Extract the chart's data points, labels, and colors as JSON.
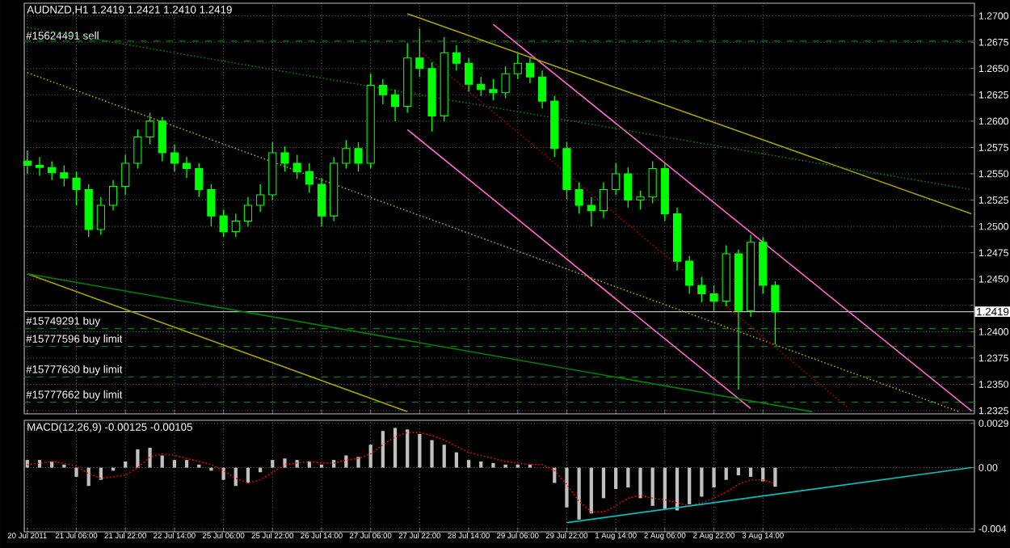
{
  "chart_data": [
    {
      "type": "candlestick",
      "title": "AUDNZD,H1 1.2419 1.2421 1.2410 1.2419",
      "color": "#00ff00",
      "categories": [
        null,
        null,
        null,
        null,
        null,
        null,
        null,
        null,
        null,
        null,
        null,
        null,
        null,
        null,
        null,
        null,
        null,
        null,
        null,
        null,
        null,
        null,
        null,
        null,
        null,
        null,
        null,
        null,
        null,
        null,
        null,
        null,
        null,
        null,
        null,
        null,
        null,
        null,
        null,
        null,
        null,
        null,
        null,
        null,
        null,
        null,
        null,
        null,
        null,
        null,
        null,
        null,
        null,
        null,
        null,
        null,
        null,
        null,
        null,
        null,
        null,
        null,
        null,
        null,
        null,
        null,
        null,
        null,
        null,
        null,
        null,
        null,
        null,
        null,
        null,
        null,
        null,
        null
      ],
      "ohlc": [
        [
          1.2562,
          1.2572,
          1.255,
          1.2558
        ],
        [
          1.2558,
          1.2566,
          1.2548,
          1.2556
        ],
        [
          1.2556,
          1.2562,
          1.2544,
          1.2551
        ],
        [
          1.2551,
          1.2558,
          1.2538,
          1.2546
        ],
        [
          1.2546,
          1.2552,
          1.252,
          1.2535
        ],
        [
          1.2535,
          1.254,
          1.249,
          1.2497
        ],
        [
          1.2497,
          1.2528,
          1.2492,
          1.252
        ],
        [
          1.252,
          1.2544,
          1.2515,
          1.2538
        ],
        [
          1.2538,
          1.2568,
          1.253,
          1.256
        ],
        [
          1.256,
          1.2592,
          1.2555,
          1.2585
        ],
        [
          1.2585,
          1.2608,
          1.2578,
          1.26
        ],
        [
          1.26,
          1.2604,
          1.2562,
          1.257
        ],
        [
          1.257,
          1.2578,
          1.2552,
          1.256
        ],
        [
          1.256,
          1.2566,
          1.2546,
          1.2555
        ],
        [
          1.2555,
          1.256,
          1.2528,
          1.2535
        ],
        [
          1.2535,
          1.254,
          1.25,
          1.251
        ],
        [
          1.251,
          1.2516,
          1.249,
          1.2495
        ],
        [
          1.2495,
          1.2512,
          1.249,
          1.2505
        ],
        [
          1.2505,
          1.2528,
          1.25,
          1.252
        ],
        [
          1.252,
          1.254,
          1.2514,
          1.253
        ],
        [
          1.253,
          1.258,
          1.2525,
          1.257
        ],
        [
          1.257,
          1.2576,
          1.2552,
          1.256
        ],
        [
          1.256,
          1.2568,
          1.2545,
          1.2552
        ],
        [
          1.2552,
          1.256,
          1.2532,
          1.254
        ],
        [
          1.254,
          1.2546,
          1.25,
          1.251
        ],
        [
          1.251,
          1.2566,
          1.2505,
          1.256
        ],
        [
          1.256,
          1.2582,
          1.2555,
          1.2574
        ],
        [
          1.2574,
          1.258,
          1.2552,
          1.256
        ],
        [
          1.256,
          1.2645,
          1.2555,
          1.2634
        ],
        [
          1.2634,
          1.264,
          1.2616,
          1.2625
        ],
        [
          1.2625,
          1.263,
          1.26,
          1.2614
        ],
        [
          1.2614,
          1.2674,
          1.2608,
          1.266
        ],
        [
          1.266,
          1.2688,
          1.2642,
          1.265
        ],
        [
          1.265,
          1.2656,
          1.259,
          1.2605
        ],
        [
          1.2605,
          1.268,
          1.26,
          1.2665
        ],
        [
          1.2665,
          1.2672,
          1.2648,
          1.2655
        ],
        [
          1.2655,
          1.266,
          1.2628,
          1.2635
        ],
        [
          1.2635,
          1.2642,
          1.2624,
          1.263
        ],
        [
          1.263,
          1.264,
          1.262,
          1.2627
        ],
        [
          1.2627,
          1.2652,
          1.2622,
          1.2645
        ],
        [
          1.2645,
          1.2664,
          1.264,
          1.2655
        ],
        [
          1.2655,
          1.266,
          1.2636,
          1.2642
        ],
        [
          1.2642,
          1.2648,
          1.2612,
          1.2619
        ],
        [
          1.2619,
          1.2624,
          1.2566,
          1.2574
        ],
        [
          1.2574,
          1.258,
          1.2526,
          1.2535
        ],
        [
          1.2535,
          1.2542,
          1.2512,
          1.252
        ],
        [
          1.252,
          1.2528,
          1.25,
          1.2515
        ],
        [
          1.2515,
          1.2542,
          1.2508,
          1.2535
        ],
        [
          1.2535,
          1.256,
          1.253,
          1.255
        ],
        [
          1.255,
          1.2556,
          1.2518,
          1.2525
        ],
        [
          1.2525,
          1.2534,
          1.2516,
          1.2528
        ],
        [
          1.2528,
          1.2562,
          1.2522,
          1.2555
        ],
        [
          1.2555,
          1.256,
          1.2505,
          1.2512
        ],
        [
          1.2512,
          1.2518,
          1.2458,
          1.2467
        ],
        [
          1.2467,
          1.2472,
          1.2436,
          1.2444
        ],
        [
          1.2444,
          1.2452,
          1.2428,
          1.2436
        ],
        [
          1.2436,
          1.2444,
          1.242,
          1.2429
        ],
        [
          1.2429,
          1.2482,
          1.2424,
          1.2474
        ],
        [
          1.2474,
          1.2478,
          1.2345,
          1.242
        ],
        [
          1.242,
          1.2492,
          1.2414,
          1.2485
        ],
        [
          1.2485,
          1.249,
          1.2436,
          1.2444
        ],
        [
          1.2444,
          1.2448,
          1.2388,
          1.2419
        ],
        null,
        null,
        null,
        null,
        null,
        null,
        null,
        null,
        null,
        null,
        null,
        null,
        null,
        null,
        null,
        null
      ],
      "series": [
        {
          "type": "line",
          "color": "#ff66cc",
          "line_style": "solid",
          "values": [
            null,
            null,
            null,
            null,
            null,
            null,
            null,
            null,
            null,
            null,
            null,
            null,
            null,
            null,
            null,
            null,
            null,
            null,
            null,
            null,
            null,
            null,
            null,
            null,
            null,
            null,
            null,
            null,
            null,
            null,
            null,
            null,
            null,
            null,
            null,
            null,
            null,
            null,
            1.2692,
            null,
            null,
            null,
            null,
            null,
            null,
            null,
            null,
            null,
            null,
            null,
            null,
            null,
            null,
            null,
            null,
            null,
            null,
            null,
            null,
            null,
            null,
            null,
            null,
            null,
            null,
            null,
            null,
            null,
            null,
            null,
            null,
            null,
            null,
            null,
            null,
            null,
            null,
            1.2325
          ]
        },
        {
          "type": "line",
          "color": "#ff66cc",
          "line_style": "solid",
          "values": [
            null,
            null,
            null,
            null,
            null,
            null,
            null,
            null,
            null,
            null,
            null,
            null,
            null,
            null,
            null,
            null,
            null,
            null,
            null,
            null,
            null,
            null,
            null,
            null,
            null,
            null,
            null,
            null,
            null,
            null,
            null,
            1.2592,
            null,
            null,
            null,
            null,
            null,
            null,
            null,
            null,
            null,
            null,
            null,
            null,
            null,
            null,
            null,
            null,
            null,
            null,
            null,
            null,
            null,
            null,
            null,
            null,
            null,
            null,
            null,
            1.2327,
            null,
            null,
            null,
            null,
            null,
            null,
            null,
            null,
            null,
            null,
            null,
            null,
            null,
            null,
            null,
            null,
            null,
            null
          ]
        },
        {
          "type": "line",
          "color": "#a0a000",
          "line_style": "solid",
          "values": [
            null,
            null,
            null,
            null,
            null,
            null,
            null,
            null,
            null,
            null,
            null,
            null,
            null,
            null,
            null,
            null,
            null,
            null,
            null,
            null,
            null,
            null,
            null,
            null,
            null,
            null,
            null,
            null,
            null,
            null,
            null,
            1.2702,
            null,
            null,
            null,
            null,
            null,
            null,
            null,
            null,
            null,
            null,
            null,
            null,
            null,
            null,
            null,
            null,
            null,
            null,
            null,
            null,
            null,
            null,
            null,
            null,
            null,
            null,
            null,
            null,
            null,
            null,
            null,
            null,
            null,
            null,
            null,
            null,
            null,
            null,
            null,
            null,
            null,
            null,
            null,
            null,
            null,
            1.2512
          ]
        },
        {
          "type": "line",
          "color": "#008000",
          "line_style": "dotted",
          "values": [
            1.2689,
            null,
            null,
            null,
            null,
            null,
            null,
            null,
            null,
            null,
            null,
            null,
            null,
            null,
            null,
            null,
            null,
            null,
            null,
            null,
            null,
            null,
            null,
            null,
            null,
            null,
            null,
            null,
            null,
            null,
            null,
            null,
            null,
            null,
            null,
            null,
            null,
            null,
            null,
            null,
            null,
            null,
            null,
            null,
            null,
            null,
            null,
            null,
            null,
            null,
            null,
            null,
            null,
            null,
            null,
            null,
            null,
            null,
            null,
            null,
            null,
            null,
            null,
            null,
            null,
            null,
            null,
            null,
            null,
            null,
            null,
            null,
            null,
            null,
            null,
            null,
            null,
            1.2535
          ]
        },
        {
          "type": "line",
          "color": "#a0a000",
          "line_style": "dotted",
          "values": [
            1.2646,
            null,
            null,
            null,
            null,
            null,
            null,
            null,
            null,
            null,
            null,
            null,
            null,
            null,
            null,
            null,
            null,
            null,
            null,
            null,
            null,
            null,
            null,
            null,
            null,
            null,
            null,
            null,
            null,
            null,
            null,
            null,
            null,
            null,
            null,
            null,
            null,
            null,
            null,
            null,
            null,
            null,
            null,
            null,
            null,
            null,
            null,
            null,
            null,
            null,
            null,
            null,
            null,
            null,
            null,
            null,
            null,
            null,
            null,
            null,
            null,
            null,
            null,
            null,
            null,
            null,
            null,
            null,
            null,
            null,
            null,
            null,
            null,
            null,
            null,
            null,
            1.2324,
            null
          ]
        },
        {
          "type": "line",
          "color": "#a00000",
          "line_style": "dotted",
          "values": [
            null,
            null,
            null,
            null,
            null,
            null,
            null,
            null,
            null,
            null,
            null,
            null,
            null,
            null,
            null,
            null,
            null,
            null,
            null,
            null,
            null,
            null,
            null,
            null,
            null,
            null,
            null,
            null,
            null,
            null,
            null,
            null,
            1.2667,
            null,
            null,
            null,
            null,
            null,
            null,
            null,
            null,
            null,
            null,
            null,
            null,
            null,
            null,
            null,
            null,
            null,
            null,
            null,
            null,
            null,
            null,
            null,
            null,
            null,
            null,
            null,
            null,
            null,
            null,
            null,
            null,
            null,
            null,
            1.2327,
            null,
            null,
            null,
            null,
            null,
            null,
            null,
            null,
            null,
            null
          ]
        },
        {
          "type": "line",
          "color": "#a0a000",
          "line_style": "solid",
          "values": [
            1.2455,
            null,
            null,
            null,
            null,
            null,
            null,
            null,
            null,
            null,
            null,
            null,
            null,
            null,
            null,
            null,
            null,
            null,
            null,
            null,
            null,
            null,
            null,
            null,
            null,
            null,
            null,
            null,
            null,
            null,
            null,
            1.2324,
            null,
            null,
            null,
            null,
            null,
            null,
            null,
            null,
            null,
            null,
            null,
            null,
            null,
            null,
            null,
            null,
            null,
            null,
            null,
            null,
            null,
            null,
            null,
            null,
            null,
            null,
            null,
            null,
            null,
            null,
            null,
            null,
            null,
            null,
            null,
            null,
            null,
            null,
            null,
            null,
            null,
            null,
            null,
            null,
            null,
            null
          ]
        },
        {
          "type": "line",
          "color": "#008000",
          "line_style": "solid",
          "values": [
            1.2455,
            null,
            null,
            null,
            null,
            null,
            null,
            null,
            null,
            null,
            null,
            null,
            null,
            null,
            null,
            null,
            null,
            null,
            null,
            null,
            null,
            null,
            null,
            null,
            null,
            null,
            null,
            null,
            null,
            null,
            null,
            null,
            null,
            null,
            null,
            null,
            null,
            null,
            null,
            null,
            null,
            null,
            null,
            null,
            null,
            null,
            null,
            null,
            null,
            null,
            null,
            null,
            null,
            null,
            null,
            null,
            null,
            null,
            null,
            null,
            null,
            null,
            null,
            null,
            1.2324,
            null,
            null,
            null,
            null,
            null,
            null,
            null,
            null,
            null,
            null,
            null,
            null,
            null
          ]
        }
      ],
      "ref_lines": [
        {
          "axis": "y",
          "value": 1.2676,
          "label": "#15624491 sell",
          "color": "#008000",
          "line_style": "dashed"
        },
        {
          "axis": "y",
          "value": 1.2403,
          "label": "#15749291 buy",
          "color": "#008000",
          "line_style": "dashed"
        },
        {
          "axis": "y",
          "value": 1.2386,
          "label": "#15777596 buy limit",
          "color": "#008000",
          "line_style": "dashed"
        },
        {
          "axis": "y",
          "value": 1.2357,
          "label": "#15777630 buy limit",
          "color": "#008000",
          "line_style": "dashed"
        },
        {
          "axis": "y",
          "value": 1.2333,
          "label": "#15777662 buy limit",
          "color": "#008000",
          "line_style": "dashed"
        },
        {
          "axis": "y",
          "value": 1.2419,
          "label": "1.2419",
          "color": "#c0c0c0",
          "line_style": "solid"
        }
      ],
      "ylim": [
        1.2322,
        1.2712
      ],
      "yticks": [
        {
          "value": 1.2325,
          "label": "1.2325"
        },
        {
          "value": 1.235,
          "label": "1.2350"
        },
        {
          "value": 1.2375,
          "label": "1.2375"
        },
        {
          "value": 1.24,
          "label": "1.2400"
        },
        {
          "value": 1.2425,
          "label": null
        },
        {
          "value": 1.245,
          "label": "1.2450"
        },
        {
          "value": 1.2475,
          "label": "1.2475"
        },
        {
          "value": 1.25,
          "label": "1.2500"
        },
        {
          "value": 1.2525,
          "label": "1.2525"
        },
        {
          "value": 1.255,
          "label": "1.2550"
        },
        {
          "value": 1.2575,
          "label": "1.2575"
        },
        {
          "value": 1.26,
          "label": "1.2600"
        },
        {
          "value": 1.2625,
          "label": "1.2625"
        },
        {
          "value": 1.265,
          "label": "1.2650"
        },
        {
          "value": 1.2675,
          "label": "1.2675"
        },
        {
          "value": 1.27,
          "label": "1.2700"
        }
      ],
      "grid": true,
      "tick_labels": "y"
    },
    {
      "type": "bar",
      "title": "MACD(12,26,9) -0.00125 -0.00105",
      "categories": [
        "20 Jul 2011",
        null,
        null,
        null,
        "21 Jul 06:00",
        null,
        null,
        null,
        "21 Jul 22:00",
        null,
        null,
        null,
        "22 Jul 14:00",
        null,
        null,
        null,
        "25 Jul 06:00",
        null,
        null,
        null,
        "25 Jul 22:00",
        null,
        null,
        null,
        "26 Jul 14:00",
        null,
        null,
        null,
        "27 Jul 06:00",
        null,
        null,
        null,
        "27 Jul 22:00",
        null,
        null,
        null,
        "28 Jul 14:00",
        null,
        null,
        null,
        "29 Jul 06:00",
        null,
        null,
        null,
        "29 Jul 22:00",
        null,
        null,
        null,
        "1 Aug 14:00",
        null,
        null,
        null,
        "2 Aug 06:00",
        null,
        null,
        null,
        "2 Aug 22:00",
        null,
        null,
        null,
        "3 Aug 14:00",
        null,
        null,
        null,
        null,
        null,
        null,
        null,
        null,
        null,
        null,
        null,
        null,
        null,
        null,
        null,
        null,
        null
      ],
      "series": [
        {
          "type": "bar",
          "color": "#c0c0c0",
          "values": [
            0.0005,
            0.0005,
            0.0004,
            0.0002,
            -0.0006,
            -0.0012,
            -0.0008,
            -0.0002,
            0.0004,
            0.0012,
            0.0013,
            0.0008,
            0.0005,
            0.0005,
            0.0002,
            -0.0002,
            -0.0008,
            -0.0012,
            -0.001,
            -0.0003,
            0.0005,
            0.0006,
            0.0005,
            0.0004,
            0.0002,
            0.0005,
            0.0008,
            0.0007,
            0.0015,
            0.0024,
            0.0026,
            0.0025,
            0.0022,
            0.0018,
            0.0015,
            0.001,
            0.0005,
            0.0004,
            0.0003,
            0.0002,
            0.0002,
            0.0002,
            0.0,
            -0.001,
            -0.0026,
            -0.0034,
            -0.003,
            -0.002,
            -0.0014,
            -0.0013,
            -0.002,
            -0.0025,
            -0.0027,
            -0.0028,
            -0.0024,
            -0.0019,
            -0.0013,
            -0.0008,
            -0.0005,
            -0.0006,
            -0.0009,
            -0.00125,
            null,
            null,
            null,
            null,
            null,
            null,
            null,
            null,
            null,
            null,
            null,
            null,
            null,
            null,
            null,
            null
          ]
        },
        {
          "type": "line",
          "color": "#ff0000",
          "line_style": "dotted",
          "values": [
            0.0002,
            0.0003,
            0.0004,
            0.0003,
            0.0001,
            -0.0004,
            -0.0007,
            -0.0006,
            -0.0005,
            0.0,
            0.0007,
            0.0009,
            0.0008,
            0.0006,
            0.0004,
            0.0002,
            -0.0002,
            -0.0007,
            -0.001,
            -0.0008,
            -0.0003,
            0.0002,
            0.0003,
            0.0004,
            0.0003,
            0.0003,
            0.0005,
            0.0006,
            0.0009,
            0.0015,
            0.002,
            0.0023,
            0.0023,
            0.0021,
            0.0018,
            0.0014,
            0.001,
            0.0008,
            0.0006,
            0.0004,
            0.0003,
            0.0002,
            0.0002,
            -0.0002,
            -0.0011,
            -0.0022,
            -0.0029,
            -0.0029,
            -0.0025,
            -0.002,
            -0.0018,
            -0.002,
            -0.0021,
            -0.0023,
            -0.0025,
            -0.0023,
            -0.002,
            -0.0016,
            -0.0011,
            -0.0008,
            -0.0008,
            -0.00105,
            null,
            null,
            null,
            null,
            null,
            null,
            null,
            null,
            null,
            null,
            null,
            null,
            null,
            null,
            null,
            null
          ]
        },
        {
          "type": "line",
          "color": "#00c0c0",
          "line_style": "solid",
          "values": [
            null,
            null,
            null,
            null,
            null,
            null,
            null,
            null,
            null,
            null,
            null,
            null,
            null,
            null,
            null,
            null,
            null,
            null,
            null,
            null,
            null,
            null,
            null,
            null,
            null,
            null,
            null,
            null,
            null,
            null,
            null,
            null,
            null,
            null,
            null,
            null,
            null,
            null,
            null,
            null,
            null,
            null,
            null,
            null,
            -0.0036,
            null,
            null,
            null,
            null,
            null,
            null,
            null,
            null,
            null,
            null,
            null,
            null,
            null,
            null,
            null,
            null,
            null,
            null,
            null,
            null,
            null,
            null,
            null,
            null,
            null,
            null,
            null,
            null,
            null,
            null,
            null,
            null,
            0
          ]
        }
      ],
      "ylim": [
        -0.0042,
        0.0031
      ],
      "yticks": [
        -0.004,
        {
          "value": 0,
          "label": "0.00"
        },
        0.0029
      ],
      "grid": true
    }
  ]
}
